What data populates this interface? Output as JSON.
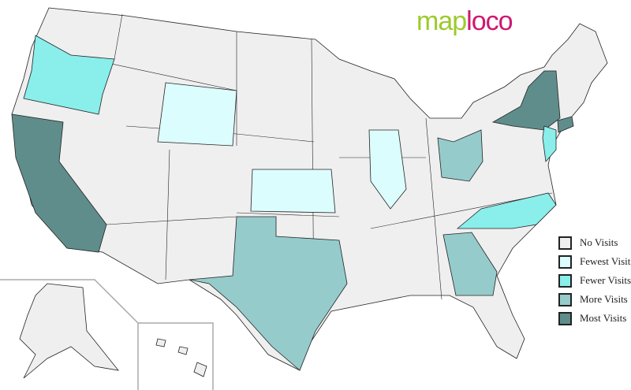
{
  "logo": {
    "part1": "map",
    "part2": "loco"
  },
  "colors": {
    "none": "#efefef",
    "fewest": "#dcfdfd",
    "fewer": "#8aeeeb",
    "more": "#96cbcb",
    "most": "#5f8d8b",
    "border": "#222222"
  },
  "legend": [
    {
      "label": "No Visits",
      "level": "none"
    },
    {
      "label": "Fewest Visits",
      "level": "fewest"
    },
    {
      "label": "Fewer Visits",
      "level": "fewer"
    },
    {
      "label": "More Visits",
      "level": "more"
    },
    {
      "label": "Most Visits",
      "level": "most"
    }
  ],
  "states": [
    {
      "state": "Oregon",
      "level": "fewer"
    },
    {
      "state": "California",
      "level": "most"
    },
    {
      "state": "Wyoming",
      "level": "fewest"
    },
    {
      "state": "Kansas",
      "level": "fewest"
    },
    {
      "state": "Illinois",
      "level": "fewest"
    },
    {
      "state": "Texas",
      "level": "more"
    },
    {
      "state": "Ohio",
      "level": "more"
    },
    {
      "state": "Georgia",
      "level": "more"
    },
    {
      "state": "North Carolina",
      "level": "fewer"
    },
    {
      "state": "New York",
      "level": "most"
    },
    {
      "state": "New Jersey",
      "level": "fewer"
    },
    {
      "state": "Connecticut",
      "level": "most"
    }
  ]
}
